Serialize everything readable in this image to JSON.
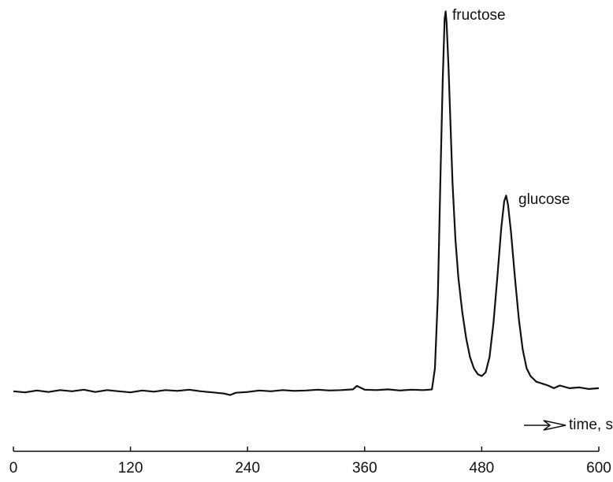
{
  "chart_data": {
    "type": "line",
    "color": "#111111",
    "annotations": [
      "fructose",
      "glucose",
      "time, sec"
    ],
    "x": [
      0,
      12,
      24,
      36,
      48,
      60,
      72,
      84,
      96,
      108,
      120,
      132,
      144,
      156,
      168,
      180,
      192,
      204,
      216,
      222,
      228,
      240,
      252,
      264,
      276,
      288,
      300,
      312,
      324,
      336,
      348,
      352,
      360,
      372,
      384,
      396,
      408,
      420,
      426,
      429,
      432,
      435,
      438,
      440,
      442,
      443,
      444,
      446,
      448,
      450,
      453,
      456,
      460,
      464,
      468,
      472,
      476,
      480,
      484,
      488,
      492,
      496,
      500,
      503,
      505,
      507,
      510,
      514,
      518,
      522,
      526,
      530,
      536,
      542,
      548,
      554,
      560,
      570,
      580,
      590,
      600
    ],
    "values": [
      0,
      -0.3,
      0.2,
      -0.2,
      0.3,
      0,
      0.4,
      -0.2,
      0.3,
      0,
      -0.3,
      0.2,
      -0.1,
      0.3,
      0.1,
      0.4,
      0,
      -0.3,
      -0.6,
      -1,
      -0.4,
      -0.2,
      0.2,
      0,
      0.3,
      0.1,
      0.2,
      0.4,
      0.2,
      0.3,
      0.5,
      1.4,
      0.4,
      0.3,
      0.5,
      0.2,
      0.4,
      0.3,
      0.4,
      0.5,
      6,
      25,
      60,
      82,
      98,
      100,
      97,
      85,
      70,
      55,
      40,
      30,
      21,
      14,
      9,
      6,
      4.5,
      4,
      5,
      9,
      18,
      30,
      43,
      50,
      51.5,
      49,
      42,
      30,
      19,
      11,
      6,
      4,
      2.5,
      2,
      1.5,
      0.8,
      1.5,
      0.8,
      1,
      0.6,
      0.8
    ],
    "xlim": [
      0,
      600
    ],
    "xticks": [
      0,
      120,
      240,
      360,
      480,
      600
    ],
    "ylim": [
      -10,
      103
    ]
  }
}
